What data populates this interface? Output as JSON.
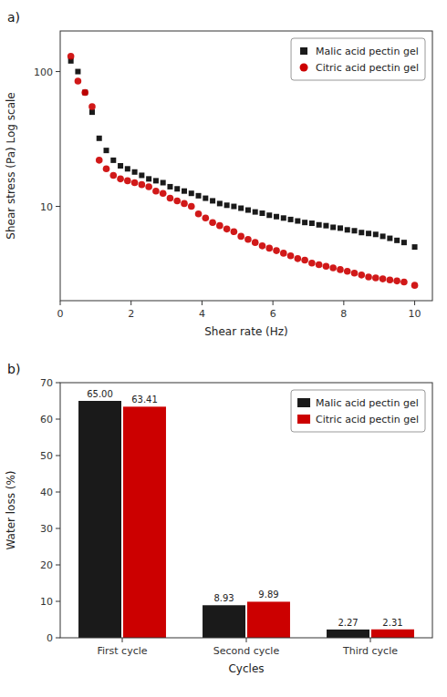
{
  "chart_data": [
    {
      "type": "scatter",
      "title": "a)",
      "xlabel": "Shear rate (Hz)",
      "ylabel": "Shear stress (Pa) Log scale",
      "log": "y",
      "xlim": [
        0,
        10.5
      ],
      "ylim": [
        2.0,
        200
      ],
      "xticks": [
        0,
        2,
        4,
        6,
        8,
        10
      ],
      "yticks": [
        10,
        100
      ],
      "grid": false,
      "legend": "upper right",
      "x": [
        0.3,
        0.5,
        0.7,
        0.9,
        1.1,
        1.3,
        1.5,
        1.7,
        1.9,
        2.1,
        2.3,
        2.5,
        2.7,
        2.9,
        3.1,
        3.3,
        3.5,
        3.7,
        3.9,
        4.1,
        4.3,
        4.5,
        4.7,
        4.9,
        5.1,
        5.3,
        5.5,
        5.7,
        5.9,
        6.1,
        6.3,
        6.5,
        6.7,
        6.9,
        7.1,
        7.3,
        7.5,
        7.7,
        7.9,
        8.1,
        8.3,
        8.5,
        8.7,
        8.9,
        9.1,
        9.3,
        9.5,
        9.7,
        10.0
      ],
      "series": [
        {
          "name": "Malic acid pectin gel",
          "color": "#1a1a1a",
          "marker": "square",
          "values": [
            120,
            100,
            70,
            50,
            32,
            26,
            22,
            20,
            19,
            18,
            17,
            16,
            15.5,
            15,
            14,
            13.5,
            13,
            12.5,
            12,
            11.5,
            11,
            10.5,
            10.2,
            10.0,
            9.7,
            9.4,
            9.1,
            8.9,
            8.6,
            8.4,
            8.2,
            8.0,
            7.8,
            7.6,
            7.5,
            7.3,
            7.2,
            7.0,
            6.9,
            6.7,
            6.6,
            6.4,
            6.3,
            6.2,
            6.0,
            5.8,
            5.6,
            5.4,
            5.0
          ]
        },
        {
          "name": "Citric acid pectin gel",
          "color": "#cc0000",
          "marker": "circle",
          "values": [
            130,
            85,
            70,
            55,
            22,
            19,
            17,
            16,
            15.5,
            15,
            14.5,
            14,
            13,
            12.5,
            11.5,
            11,
            10.5,
            10,
            8.8,
            8.2,
            7.6,
            7.2,
            6.8,
            6.5,
            6.0,
            5.7,
            5.4,
            5.1,
            4.9,
            4.7,
            4.5,
            4.3,
            4.1,
            4.0,
            3.8,
            3.7,
            3.6,
            3.5,
            3.4,
            3.3,
            3.2,
            3.1,
            3.0,
            2.95,
            2.9,
            2.85,
            2.8,
            2.75,
            2.6
          ]
        }
      ]
    },
    {
      "type": "bar",
      "title": "b)",
      "xlabel": "Cycles",
      "ylabel": "Water loss (%)",
      "ylim": [
        0,
        70
      ],
      "yticks": [
        0,
        10,
        20,
        30,
        40,
        50,
        60,
        70
      ],
      "grid": false,
      "legend": "upper right",
      "data_labels": true,
      "categories": [
        "First cycle",
        "Second cycle",
        "Third cycle"
      ],
      "series": [
        {
          "name": "Malic acid pectin gel",
          "color": "#1a1a1a",
          "values": [
            65.0,
            8.93,
            2.27
          ],
          "value_labels": [
            "65.00",
            "8.93",
            "2.27"
          ]
        },
        {
          "name": "Citric acid pectin gel",
          "color": "#cc0000",
          "values": [
            63.41,
            9.89,
            2.31
          ],
          "value_labels": [
            "63.41",
            "9.89",
            "2.31"
          ]
        }
      ]
    }
  ]
}
